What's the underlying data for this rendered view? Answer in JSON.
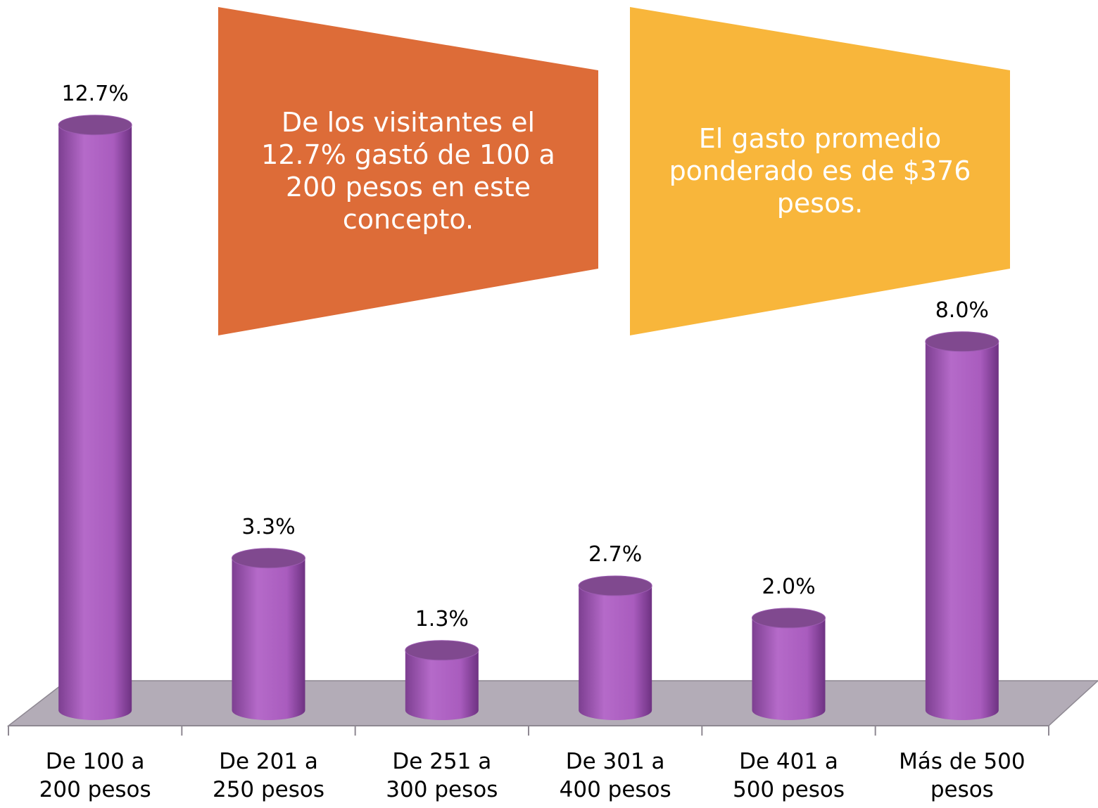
{
  "chart_data": {
    "type": "bar3d",
    "categories": [
      "De 100 a 200 pesos",
      "De 201 a 250 pesos",
      "De 251 a 300 pesos",
      "De 301 a 400 pesos",
      "De 401 a 500 pesos",
      "Más de 500 pesos"
    ],
    "values": [
      12.7,
      3.3,
      1.3,
      2.7,
      2.0,
      8.0
    ],
    "value_labels": [
      "12.7%",
      "3.3%",
      "1.3%",
      "2.7%",
      "2.0%",
      "8.0%"
    ],
    "color": "#b068c4",
    "ylim": [
      0,
      15
    ],
    "annotations": [
      {
        "text": "De los visitantes el 12.7% gastó de 100 a 200 pesos en este concepto.",
        "color": "#dd6c38"
      },
      {
        "text": "El gasto promedio ponderado es de $376 pesos.",
        "color": "#f8b63b"
      }
    ]
  }
}
